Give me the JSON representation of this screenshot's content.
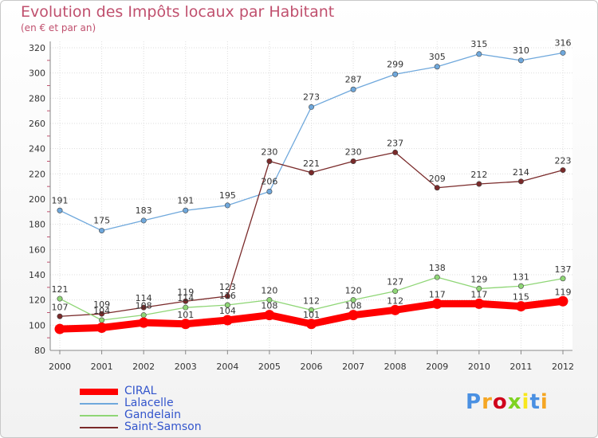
{
  "chart_data": {
    "type": "line",
    "title": "Evolution des Impôts locaux par Habitant",
    "subtitle": "(en € et par an)",
    "xlabel": "",
    "ylabel": "",
    "x": [
      "2000",
      "2001",
      "2002",
      "2003",
      "2004",
      "2005",
      "2006",
      "2007",
      "2008",
      "2009",
      "2010",
      "2011",
      "2012"
    ],
    "ylim": [
      80,
      320
    ],
    "yticks": [
      80,
      100,
      120,
      140,
      160,
      180,
      200,
      220,
      240,
      260,
      280,
      300,
      320
    ],
    "grid": true,
    "series": [
      {
        "name": "CIRAL",
        "color": "#ff0000",
        "values": [
          97,
          98,
          102,
          101,
          104,
          108,
          101,
          108,
          112,
          117,
          117,
          115,
          119
        ],
        "labels": [
          "",
          "",
          "",
          "101",
          "104",
          "108",
          "101",
          "108",
          "112",
          "117",
          "117",
          "115",
          "119"
        ]
      },
      {
        "name": "Lalacelle",
        "color": "#6fa8dc",
        "values": [
          191,
          175,
          183,
          191,
          195,
          206,
          273,
          287,
          299,
          305,
          315,
          310,
          316
        ],
        "labels": [
          "191",
          "175",
          "183",
          "191",
          "195",
          "206",
          "273",
          "287",
          "299",
          "305",
          "315",
          "310",
          "316"
        ]
      },
      {
        "name": "Gandelain",
        "color": "#8fd676",
        "values": [
          121,
          104,
          108,
          114,
          116,
          120,
          112,
          120,
          127,
          138,
          129,
          131,
          137
        ],
        "labels": [
          "121",
          "104",
          "108",
          "114",
          "116",
          "120",
          "112",
          "120",
          "127",
          "138",
          "129",
          "131",
          "137"
        ]
      },
      {
        "name": "Saint-Samson",
        "color": "#7a2a2a",
        "values": [
          107,
          109,
          114,
          119,
          123,
          230,
          221,
          230,
          237,
          209,
          212,
          214,
          223
        ],
        "labels": [
          "107",
          "109",
          "114",
          "119",
          "123",
          "230",
          "221",
          "230",
          "237",
          "209",
          "212",
          "214",
          "223"
        ]
      }
    ]
  },
  "branding": {
    "logo_text": "Proxiti",
    "logo_colors": [
      "#4a90e2",
      "#f5a623",
      "#d0021b",
      "#7ed321",
      "#f8e71c",
      "#4a90e2",
      "#f5a623"
    ]
  }
}
